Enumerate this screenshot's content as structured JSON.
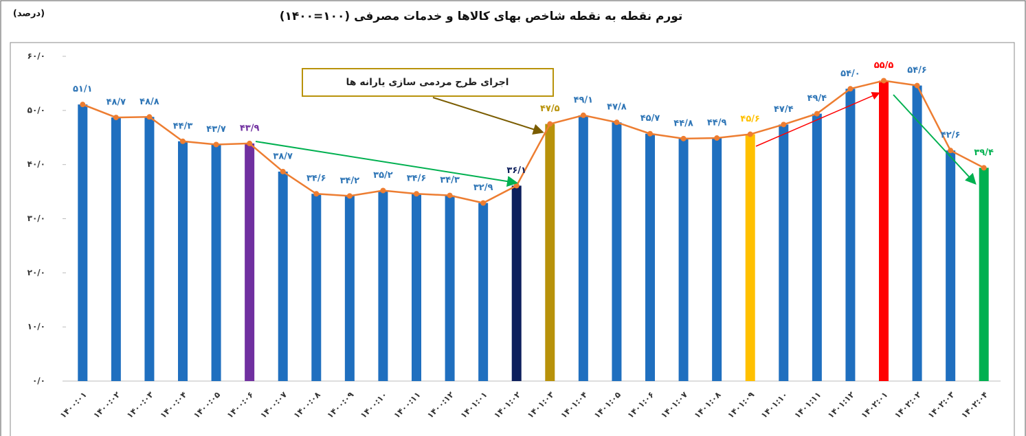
{
  "chart_data": {
    "type": "bar",
    "title": "تورم نقطه به نقطه شاخص بهای کالاها و خدمات مصرفی (۱۰۰=۱۴۰۰)",
    "unit_label": "(درصد)",
    "annotation": "اجرای طرح مردمی سازی یارانه ها",
    "categories": [
      "۱۴۰۰:۰۱",
      "۱۴۰۰:۰۲",
      "۱۴۰۰:۰۳",
      "۱۴۰۰:۰۴",
      "۱۴۰۰:۰۵",
      "۱۴۰۰:۰۶",
      "۱۴۰۰:۰۷",
      "۱۴۰۰:۰۸",
      "۱۴۰۰:۰۹",
      "۱۴۰۰:۱۰",
      "۱۴۰۰:۱۱",
      "۱۴۰۰:۱۲",
      "۱۴۰۱:۰۱",
      "۱۴۰۱:۰۲",
      "۱۴۰۱:۰۳",
      "۱۴۰۱:۰۴",
      "۱۴۰۱:۰۵",
      "۱۴۰۱:۰۶",
      "۱۴۰۱:۰۷",
      "۱۴۰۱:۰۸",
      "۱۴۰۱:۰۹",
      "۱۴۰۱:۱۰",
      "۱۴۰۱:۱۱",
      "۱۴۰۱:۱۲",
      "۱۴۰۲:۰۱",
      "۱۴۰۲:۰۲",
      "۱۴۰۲:۰۳",
      "۱۴۰۲:۰۴"
    ],
    "values": [
      51.1,
      48.7,
      48.8,
      44.3,
      43.7,
      43.9,
      38.7,
      34.6,
      34.2,
      35.2,
      34.6,
      34.3,
      32.9,
      36.1,
      47.5,
      49.1,
      47.8,
      45.7,
      44.8,
      44.9,
      45.6,
      47.4,
      49.4,
      54.0,
      55.5,
      54.6,
      42.6,
      39.4
    ],
    "value_labels": [
      "۵۱/۱",
      "۴۸/۷",
      "۴۸/۸",
      "۴۴/۳",
      "۴۳/۷",
      "۴۳/۹",
      "۳۸/۷",
      "۳۴/۶",
      "۳۴/۲",
      "۳۵/۲",
      "۳۴/۶",
      "۳۴/۳",
      "۳۲/۹",
      "۳۶/۱",
      "۴۷/۵",
      "۴۹/۱",
      "۴۷/۸",
      "۴۵/۷",
      "۴۴/۸",
      "۴۴/۹",
      "۴۵/۶",
      "۴۷/۴",
      "۴۹/۴",
      "۵۴/۰",
      "۵۵/۵",
      "۵۴/۶",
      "۴۲/۶",
      "۳۹/۴"
    ],
    "colors": [
      "#1f6fbf",
      "#1f6fbf",
      "#1f6fbf",
      "#1f6fbf",
      "#1f6fbf",
      "#7030a0",
      "#1f6fbf",
      "#1f6fbf",
      "#1f6fbf",
      "#1f6fbf",
      "#1f6fbf",
      "#1f6fbf",
      "#1f6fbf",
      "#0d1f5c",
      "#b8920a",
      "#1f6fbf",
      "#1f6fbf",
      "#1f6fbf",
      "#1f6fbf",
      "#1f6fbf",
      "#ffc000",
      "#1f6fbf",
      "#1f6fbf",
      "#1f6fbf",
      "#ff0000",
      "#1f6fbf",
      "#1f6fbf",
      "#00b050"
    ],
    "line_color": "#ed7d31",
    "ylim": [
      0,
      60
    ],
    "yticks": [
      {
        "value": 0,
        "label": "۰/۰"
      },
      {
        "value": 10,
        "label": "۱۰/۰"
      },
      {
        "value": 20,
        "label": "۲۰/۰"
      },
      {
        "value": 30,
        "label": "۳۰/۰"
      },
      {
        "value": 40,
        "label": "۴۰/۰"
      },
      {
        "value": 50,
        "label": "۵۰/۰"
      },
      {
        "value": 60,
        "label": "۶۰/۰"
      }
    ],
    "grid": false
  }
}
